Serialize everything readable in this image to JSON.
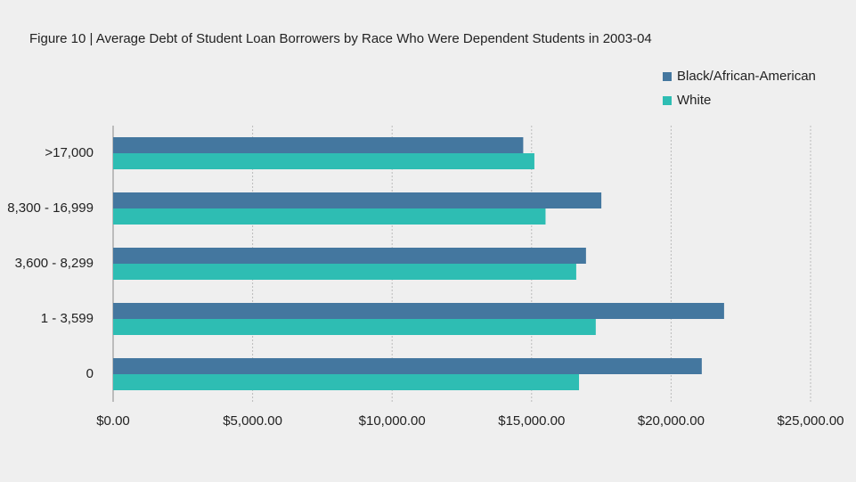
{
  "chart_data": {
    "type": "hbar",
    "title": "Figure 10 | Average Debt of Student Loan Borrowers by Race Who Were Dependent Students in 2003-04",
    "categories": [
      ">17,000",
      "8,300 - 16,999",
      "3,600 - 8,299",
      "1 - 3,599",
      "0"
    ],
    "series": [
      {
        "name": "Black/African-American",
        "color": "#44779f",
        "values": [
          14700,
          17500,
          16950,
          21900,
          21100
        ]
      },
      {
        "name": "White",
        "color": "#2ebdb3",
        "values": [
          15100,
          15500,
          16600,
          17300,
          16700
        ]
      }
    ],
    "xlim": [
      0,
      25000
    ],
    "xticks": [
      {
        "value": 0,
        "label": "$0.00"
      },
      {
        "value": 5000,
        "label": "$5,000.00"
      },
      {
        "value": 10000,
        "label": "$10,000.00"
      },
      {
        "value": 15000,
        "label": "$15,000.00"
      },
      {
        "value": 20000,
        "label": "$20,000.00"
      },
      {
        "value": 25000,
        "label": "$25,000.00"
      }
    ],
    "grid": true,
    "legend": "top-right"
  }
}
